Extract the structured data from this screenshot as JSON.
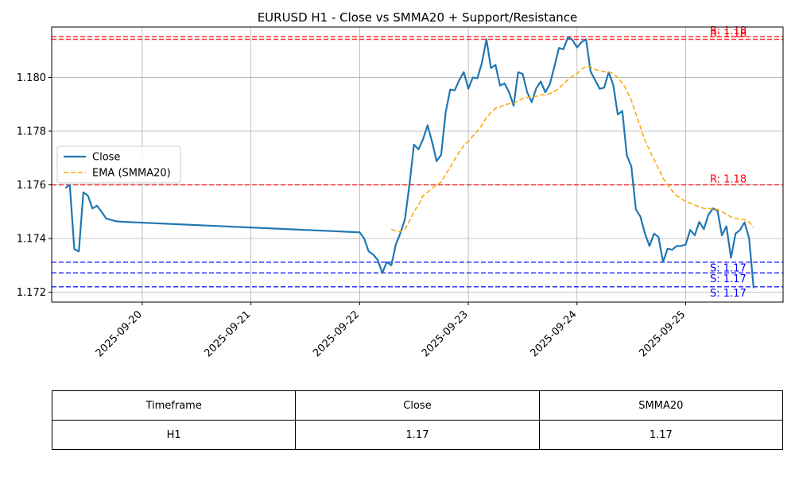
{
  "chart_data": {
    "type": "line",
    "title": "EURUSD H1 - Close vs SMMA20 + Support/Resistance",
    "xlabel": "",
    "ylabel": "",
    "x_range": [
      "2025-09-19T04:00",
      "2025-09-25T21:30"
    ],
    "ylim": [
      1.17163,
      1.18188
    ],
    "grid": true,
    "legend_placement": "center-left",
    "x_tick_labels": [
      "2025-09-20",
      "2025-09-21",
      "2025-09-22",
      "2025-09-23",
      "2025-09-24",
      "2025-09-25"
    ],
    "x_tick_values": [
      "2025-09-20T00:00",
      "2025-09-21T00:00",
      "2025-09-22T00:00",
      "2025-09-23T00:00",
      "2025-09-24T00:00",
      "2025-09-25T00:00"
    ],
    "y_tick_labels": [
      "1.172",
      "1.174",
      "1.176",
      "1.178",
      "1.180"
    ],
    "y_tick_values": [
      1.172,
      1.174,
      1.176,
      1.178,
      1.18
    ],
    "series": [
      {
        "name": "Close",
        "style": "solid",
        "color": "#1f77b4",
        "points": [
          [
            "2025-09-19T07:00",
            1.17588
          ],
          [
            "2025-09-19T08:00",
            1.176
          ],
          [
            "2025-09-19T09:00",
            1.1736
          ],
          [
            "2025-09-19T10:00",
            1.17352
          ],
          [
            "2025-09-19T11:00",
            1.17572
          ],
          [
            "2025-09-19T12:00",
            1.1756
          ],
          [
            "2025-09-19T13:00",
            1.17512
          ],
          [
            "2025-09-19T14:00",
            1.17522
          ],
          [
            "2025-09-19T15:00",
            1.175
          ],
          [
            "2025-09-19T16:00",
            1.17475
          ],
          [
            "2025-09-19T17:00",
            1.1747
          ],
          [
            "2025-09-19T18:00",
            1.17465
          ],
          [
            "2025-09-19T19:00",
            1.17463
          ],
          [
            "2025-09-19T20:00",
            1.17462
          ],
          [
            "2025-09-22T00:00",
            1.17423
          ],
          [
            "2025-09-22T01:00",
            1.174
          ],
          [
            "2025-09-22T02:00",
            1.17352
          ],
          [
            "2025-09-22T03:00",
            1.1734
          ],
          [
            "2025-09-22T04:00",
            1.1732
          ],
          [
            "2025-09-22T05:00",
            1.17272
          ],
          [
            "2025-09-22T06:00",
            1.17312
          ],
          [
            "2025-09-22T07:00",
            1.173
          ],
          [
            "2025-09-22T08:00",
            1.17378
          ],
          [
            "2025-09-22T09:00",
            1.1742
          ],
          [
            "2025-09-22T10:00",
            1.17472
          ],
          [
            "2025-09-22T11:00",
            1.176
          ],
          [
            "2025-09-22T12:00",
            1.1775
          ],
          [
            "2025-09-22T13:00",
            1.17732
          ],
          [
            "2025-09-22T14:00",
            1.1777
          ],
          [
            "2025-09-22T15:00",
            1.17822
          ],
          [
            "2025-09-22T16:00",
            1.1776
          ],
          [
            "2025-09-22T17:00",
            1.17688
          ],
          [
            "2025-09-22T18:00",
            1.17712
          ],
          [
            "2025-09-22T19:00",
            1.1787
          ],
          [
            "2025-09-22T20:00",
            1.17955
          ],
          [
            "2025-09-22T21:00",
            1.17952
          ],
          [
            "2025-09-22T22:00",
            1.1799
          ],
          [
            "2025-09-22T23:00",
            1.1802
          ],
          [
            "2025-09-23T00:00",
            1.17958
          ],
          [
            "2025-09-23T01:00",
            1.18
          ],
          [
            "2025-09-23T02:00",
            1.17997
          ],
          [
            "2025-09-23T03:00",
            1.18055
          ],
          [
            "2025-09-23T04:00",
            1.18142
          ],
          [
            "2025-09-23T05:00",
            1.18035
          ],
          [
            "2025-09-23T06:00",
            1.18047
          ],
          [
            "2025-09-23T07:00",
            1.1797
          ],
          [
            "2025-09-23T08:00",
            1.17978
          ],
          [
            "2025-09-23T09:00",
            1.17945
          ],
          [
            "2025-09-23T10:00",
            1.17895
          ],
          [
            "2025-09-23T11:00",
            1.1802
          ],
          [
            "2025-09-23T12:00",
            1.18013
          ],
          [
            "2025-09-23T13:00",
            1.17945
          ],
          [
            "2025-09-23T14:00",
            1.17908
          ],
          [
            "2025-09-23T15:00",
            1.1796
          ],
          [
            "2025-09-23T16:00",
            1.17985
          ],
          [
            "2025-09-23T17:00",
            1.17945
          ],
          [
            "2025-09-23T18:00",
            1.17975
          ],
          [
            "2025-09-23T19:00",
            1.1804
          ],
          [
            "2025-09-23T20:00",
            1.1811
          ],
          [
            "2025-09-23T21:00",
            1.18105
          ],
          [
            "2025-09-23T22:00",
            1.1815
          ],
          [
            "2025-09-23T23:00",
            1.1814
          ],
          [
            "2025-09-24T00:00",
            1.18112
          ],
          [
            "2025-09-24T01:00",
            1.18132
          ],
          [
            "2025-09-24T02:00",
            1.18142
          ],
          [
            "2025-09-24T03:00",
            1.18022
          ],
          [
            "2025-09-24T04:00",
            1.1799
          ],
          [
            "2025-09-24T05:00",
            1.17958
          ],
          [
            "2025-09-24T06:00",
            1.17962
          ],
          [
            "2025-09-24T07:00",
            1.1802
          ],
          [
            "2025-09-24T08:00",
            1.17972
          ],
          [
            "2025-09-24T09:00",
            1.17862
          ],
          [
            "2025-09-24T10:00",
            1.17875
          ],
          [
            "2025-09-24T11:00",
            1.1771
          ],
          [
            "2025-09-24T12:00",
            1.17668
          ],
          [
            "2025-09-24T13:00",
            1.17508
          ],
          [
            "2025-09-24T14:00",
            1.17482
          ],
          [
            "2025-09-24T15:00",
            1.17418
          ],
          [
            "2025-09-24T16:00",
            1.17372
          ],
          [
            "2025-09-24T17:00",
            1.17418
          ],
          [
            "2025-09-24T18:00",
            1.17405
          ],
          [
            "2025-09-24T19:00",
            1.17312
          ],
          [
            "2025-09-24T20:00",
            1.17362
          ],
          [
            "2025-09-24T21:00",
            1.17358
          ],
          [
            "2025-09-24T22:00",
            1.17372
          ],
          [
            "2025-09-24T23:00",
            1.17372
          ],
          [
            "2025-09-25T00:00",
            1.17378
          ],
          [
            "2025-09-25T01:00",
            1.17432
          ],
          [
            "2025-09-25T02:00",
            1.17412
          ],
          [
            "2025-09-25T03:00",
            1.17462
          ],
          [
            "2025-09-25T04:00",
            1.17435
          ],
          [
            "2025-09-25T05:00",
            1.17488
          ],
          [
            "2025-09-25T06:00",
            1.17512
          ],
          [
            "2025-09-25T07:00",
            1.17505
          ],
          [
            "2025-09-25T08:00",
            1.17412
          ],
          [
            "2025-09-25T09:00",
            1.17445
          ],
          [
            "2025-09-25T10:00",
            1.17328
          ],
          [
            "2025-09-25T11:00",
            1.17418
          ],
          [
            "2025-09-25T12:00",
            1.17432
          ],
          [
            "2025-09-25T13:00",
            1.1746
          ],
          [
            "2025-09-25T14:00",
            1.174
          ],
          [
            "2025-09-25T15:00",
            1.17215
          ]
        ]
      },
      {
        "name": "EMA (SMMA20)",
        "style": "dashed",
        "color": "#ffa500",
        "points": [
          [
            "2025-09-22T07:00",
            1.17435
          ],
          [
            "2025-09-22T08:00",
            1.17428
          ],
          [
            "2025-09-22T09:00",
            1.17425
          ],
          [
            "2025-09-22T10:00",
            1.17435
          ],
          [
            "2025-09-22T11:00",
            1.17465
          ],
          [
            "2025-09-22T12:00",
            1.175
          ],
          [
            "2025-09-22T13:00",
            1.17525
          ],
          [
            "2025-09-22T14:00",
            1.1756
          ],
          [
            "2025-09-22T15:00",
            1.17572
          ],
          [
            "2025-09-22T16:00",
            1.17588
          ],
          [
            "2025-09-22T17:00",
            1.17598
          ],
          [
            "2025-09-22T18:00",
            1.1761
          ],
          [
            "2025-09-22T19:00",
            1.1764
          ],
          [
            "2025-09-22T20:00",
            1.17665
          ],
          [
            "2025-09-22T21:00",
            1.17695
          ],
          [
            "2025-09-22T22:00",
            1.17722
          ],
          [
            "2025-09-22T23:00",
            1.17745
          ],
          [
            "2025-09-23T00:00",
            1.17762
          ],
          [
            "2025-09-23T01:00",
            1.17782
          ],
          [
            "2025-09-23T02:00",
            1.178
          ],
          [
            "2025-09-23T03:00",
            1.17822
          ],
          [
            "2025-09-23T04:00",
            1.1785
          ],
          [
            "2025-09-23T05:00",
            1.1787
          ],
          [
            "2025-09-23T06:00",
            1.17885
          ],
          [
            "2025-09-23T07:00",
            1.1789
          ],
          [
            "2025-09-23T08:00",
            1.17898
          ],
          [
            "2025-09-23T09:00",
            1.17902
          ],
          [
            "2025-09-23T10:00",
            1.17905
          ],
          [
            "2025-09-23T11:00",
            1.17912
          ],
          [
            "2025-09-23T12:00",
            1.17922
          ],
          [
            "2025-09-23T13:00",
            1.17925
          ],
          [
            "2025-09-23T14:00",
            1.17928
          ],
          [
            "2025-09-23T15:00",
            1.1793
          ],
          [
            "2025-09-23T16:00",
            1.17935
          ],
          [
            "2025-09-23T17:00",
            1.17935
          ],
          [
            "2025-09-23T18:00",
            1.1794
          ],
          [
            "2025-09-23T19:00",
            1.17948
          ],
          [
            "2025-09-23T20:00",
            1.1796
          ],
          [
            "2025-09-23T21:00",
            1.17975
          ],
          [
            "2025-09-23T22:00",
            1.17992
          ],
          [
            "2025-09-23T23:00",
            1.18005
          ],
          [
            "2025-09-24T00:00",
            1.18015
          ],
          [
            "2025-09-24T01:00",
            1.1803
          ],
          [
            "2025-09-24T02:00",
            1.18042
          ],
          [
            "2025-09-24T03:00",
            1.1804
          ],
          [
            "2025-09-24T04:00",
            1.1803
          ],
          [
            "2025-09-24T05:00",
            1.18025
          ],
          [
            "2025-09-24T06:00",
            1.18022
          ],
          [
            "2025-09-24T07:00",
            1.1802
          ],
          [
            "2025-09-24T08:00",
            1.18015
          ],
          [
            "2025-09-24T09:00",
            1.18
          ],
          [
            "2025-09-24T10:00",
            1.1798
          ],
          [
            "2025-09-24T11:00",
            1.1795
          ],
          [
            "2025-09-24T12:00",
            1.17915
          ],
          [
            "2025-09-24T13:00",
            1.17865
          ],
          [
            "2025-09-24T14:00",
            1.17815
          ],
          [
            "2025-09-24T15:00",
            1.17765
          ],
          [
            "2025-09-24T16:00",
            1.1773
          ],
          [
            "2025-09-24T17:00",
            1.17695
          ],
          [
            "2025-09-24T18:00",
            1.1766
          ],
          [
            "2025-09-24T19:00",
            1.17625
          ],
          [
            "2025-09-24T20:00",
            1.176
          ],
          [
            "2025-09-24T21:00",
            1.17578
          ],
          [
            "2025-09-24T22:00",
            1.1756
          ],
          [
            "2025-09-24T23:00",
            1.17548
          ],
          [
            "2025-09-25T00:00",
            1.17538
          ],
          [
            "2025-09-25T01:00",
            1.17532
          ],
          [
            "2025-09-25T02:00",
            1.17525
          ],
          [
            "2025-09-25T03:00",
            1.17518
          ],
          [
            "2025-09-25T04:00",
            1.17512
          ],
          [
            "2025-09-25T05:00",
            1.17512
          ],
          [
            "2025-09-25T06:00",
            1.1751
          ],
          [
            "2025-09-25T07:00",
            1.17508
          ],
          [
            "2025-09-25T08:00",
            1.175
          ],
          [
            "2025-09-25T09:00",
            1.1749
          ],
          [
            "2025-09-25T10:00",
            1.1748
          ],
          [
            "2025-09-25T11:00",
            1.17475
          ],
          [
            "2025-09-25T12:00",
            1.17472
          ],
          [
            "2025-09-25T13:00",
            1.1747
          ],
          [
            "2025-09-25T14:00",
            1.17462
          ],
          [
            "2025-09-25T15:00",
            1.1744
          ]
        ]
      }
    ],
    "hlines": [
      {
        "kind": "resistance",
        "value": 1.18152,
        "label": "R: 1.18",
        "color": "#ff0000"
      },
      {
        "kind": "resistance",
        "value": 1.18142,
        "label": "R: 1.18",
        "color": "#ff0000"
      },
      {
        "kind": "resistance",
        "value": 1.176,
        "label": "R: 1.18",
        "color": "#ff0000"
      },
      {
        "kind": "support",
        "value": 1.17312,
        "label": "S: 1.17",
        "color": "#0000ff"
      },
      {
        "kind": "support",
        "value": 1.17272,
        "label": "S: 1.17",
        "color": "#0000ff"
      },
      {
        "kind": "support",
        "value": 1.1722,
        "label": "S: 1.17",
        "color": "#0000ff"
      }
    ]
  },
  "table": {
    "headers": [
      "Timeframe",
      "Close",
      "SMMA20"
    ],
    "row": [
      "H1",
      "1.17",
      "1.17"
    ]
  }
}
